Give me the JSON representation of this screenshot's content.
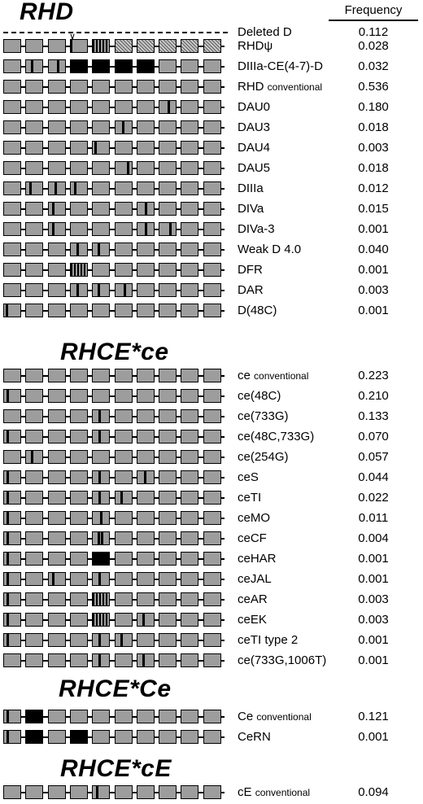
{
  "header": {
    "frequency": "Frequency"
  },
  "deleted_d": {
    "name": "Deleted D",
    "freq": "0.112"
  },
  "groups": [
    {
      "title": "RHD",
      "rows": [
        {
          "name": "RHDψ",
          "freq": "0.028"
        },
        {
          "name": "DIIIa-CE(4-7)-D",
          "freq": "0.032"
        },
        {
          "name": "RHD",
          "suffix": "conventional",
          "freq": "0.536"
        },
        {
          "name": "DAU0",
          "freq": "0.180"
        },
        {
          "name": "DAU3",
          "freq": "0.018"
        },
        {
          "name": "DAU4",
          "freq": "0.003"
        },
        {
          "name": "DAU5",
          "freq": "0.018"
        },
        {
          "name": "DIIIa",
          "freq": "0.012"
        },
        {
          "name": "DIVa",
          "freq": "0.015"
        },
        {
          "name": "DIVa-3",
          "freq": "0.001"
        },
        {
          "name": "Weak D 4.0",
          "freq": "0.040"
        },
        {
          "name": "DFR",
          "freq": "0.001"
        },
        {
          "name": "DAR",
          "freq": "0.003"
        },
        {
          "name": "D(48C)",
          "freq": "0.001"
        }
      ]
    },
    {
      "title": "RHCE*ce",
      "rows": [
        {
          "name": "ce",
          "suffix": "conventional",
          "freq": "0.223"
        },
        {
          "name": "ce(48C)",
          "freq": "0.210"
        },
        {
          "name": "ce(733G)",
          "freq": "0.133"
        },
        {
          "name": "ce(48C,733G)",
          "freq": "0.070"
        },
        {
          "name": "ce(254G)",
          "freq": "0.057"
        },
        {
          "name": "ceS",
          "freq": "0.044"
        },
        {
          "name": "ceTI",
          "freq": "0.022"
        },
        {
          "name": "ceMO",
          "freq": "0.011"
        },
        {
          "name": "ceCF",
          "freq": "0.004"
        },
        {
          "name": "ceHAR",
          "freq": "0.001"
        },
        {
          "name": "ceJAL",
          "freq": "0.001"
        },
        {
          "name": "ceAR",
          "freq": "0.003"
        },
        {
          "name": "ceEK",
          "freq": "0.003"
        },
        {
          "name": "ceTI type 2",
          "freq": "0.001"
        },
        {
          "name": "ce(733G,1006T)",
          "freq": "0.001"
        }
      ]
    },
    {
      "title": "RHCE*Ce",
      "rows": [
        {
          "name": "Ce",
          "suffix": "conventional",
          "freq": "0.121"
        },
        {
          "name": "CeRN",
          "freq": "0.001"
        }
      ]
    },
    {
      "title": "RHCE*cE",
      "rows": [
        {
          "name": "cE",
          "suffix": "conventional",
          "freq": "0.094"
        }
      ]
    }
  ]
}
